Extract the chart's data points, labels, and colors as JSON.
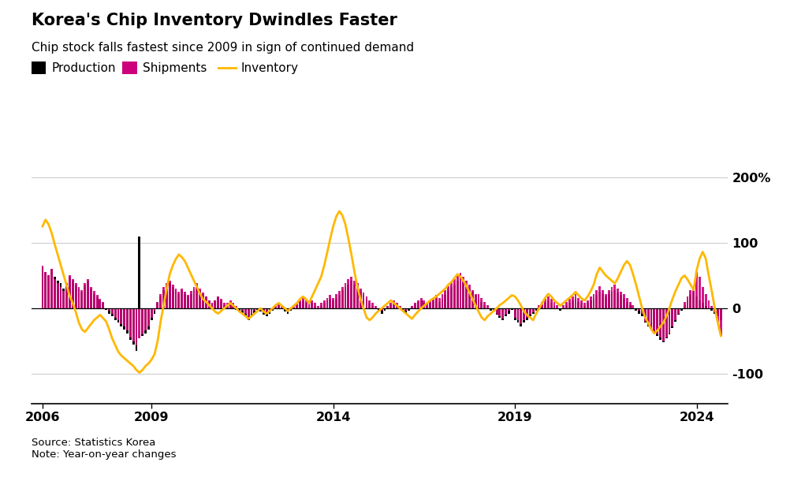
{
  "title": "Korea's Chip Inventory Dwindles Faster",
  "subtitle": "Chip stock falls fastest since 2009 in sign of continued demand",
  "legend_labels": [
    "Production",
    "Shipments",
    "Inventory"
  ],
  "production_color": "#000000",
  "shipments_color": "#CC007A",
  "inventory_color": "#FFB800",
  "yticks": [
    -100,
    0,
    100,
    200
  ],
  "ytick_labels": [
    "-100",
    "0",
    "100",
    "200%"
  ],
  "xlim_start": 2005.7,
  "xlim_end": 2024.85,
  "ylim": [
    -145,
    230
  ],
  "source_text": "Source: Statistics Korea\nNote: Year-on-year changes",
  "background_color": "#FFFFFF",
  "dates": [
    2006.0,
    2006.083,
    2006.167,
    2006.25,
    2006.333,
    2006.417,
    2006.5,
    2006.583,
    2006.667,
    2006.75,
    2006.833,
    2006.917,
    2007.0,
    2007.083,
    2007.167,
    2007.25,
    2007.333,
    2007.417,
    2007.5,
    2007.583,
    2007.667,
    2007.75,
    2007.833,
    2007.917,
    2008.0,
    2008.083,
    2008.167,
    2008.25,
    2008.333,
    2008.417,
    2008.5,
    2008.583,
    2008.667,
    2008.75,
    2008.833,
    2008.917,
    2009.0,
    2009.083,
    2009.167,
    2009.25,
    2009.333,
    2009.417,
    2009.5,
    2009.583,
    2009.667,
    2009.75,
    2009.833,
    2009.917,
    2010.0,
    2010.083,
    2010.167,
    2010.25,
    2010.333,
    2010.417,
    2010.5,
    2010.583,
    2010.667,
    2010.75,
    2010.833,
    2010.917,
    2011.0,
    2011.083,
    2011.167,
    2011.25,
    2011.333,
    2011.417,
    2011.5,
    2011.583,
    2011.667,
    2011.75,
    2011.833,
    2011.917,
    2012.0,
    2012.083,
    2012.167,
    2012.25,
    2012.333,
    2012.417,
    2012.5,
    2012.583,
    2012.667,
    2012.75,
    2012.833,
    2012.917,
    2013.0,
    2013.083,
    2013.167,
    2013.25,
    2013.333,
    2013.417,
    2013.5,
    2013.583,
    2013.667,
    2013.75,
    2013.833,
    2013.917,
    2014.0,
    2014.083,
    2014.167,
    2014.25,
    2014.333,
    2014.417,
    2014.5,
    2014.583,
    2014.667,
    2014.75,
    2014.833,
    2014.917,
    2015.0,
    2015.083,
    2015.167,
    2015.25,
    2015.333,
    2015.417,
    2015.5,
    2015.583,
    2015.667,
    2015.75,
    2015.833,
    2015.917,
    2016.0,
    2016.083,
    2016.167,
    2016.25,
    2016.333,
    2016.417,
    2016.5,
    2016.583,
    2016.667,
    2016.75,
    2016.833,
    2016.917,
    2017.0,
    2017.083,
    2017.167,
    2017.25,
    2017.333,
    2017.417,
    2017.5,
    2017.583,
    2017.667,
    2017.75,
    2017.833,
    2017.917,
    2018.0,
    2018.083,
    2018.167,
    2018.25,
    2018.333,
    2018.417,
    2018.5,
    2018.583,
    2018.667,
    2018.75,
    2018.833,
    2018.917,
    2019.0,
    2019.083,
    2019.167,
    2019.25,
    2019.333,
    2019.417,
    2019.5,
    2019.583,
    2019.667,
    2019.75,
    2019.833,
    2019.917,
    2020.0,
    2020.083,
    2020.167,
    2020.25,
    2020.333,
    2020.417,
    2020.5,
    2020.583,
    2020.667,
    2020.75,
    2020.833,
    2020.917,
    2021.0,
    2021.083,
    2021.167,
    2021.25,
    2021.333,
    2021.417,
    2021.5,
    2021.583,
    2021.667,
    2021.75,
    2021.833,
    2021.917,
    2022.0,
    2022.083,
    2022.167,
    2022.25,
    2022.333,
    2022.417,
    2022.5,
    2022.583,
    2022.667,
    2022.75,
    2022.833,
    2022.917,
    2023.0,
    2023.083,
    2023.167,
    2023.25,
    2023.333,
    2023.417,
    2023.5,
    2023.583,
    2023.667,
    2023.75,
    2023.833,
    2023.917,
    2024.0,
    2024.083,
    2024.167,
    2024.25,
    2024.333,
    2024.417,
    2024.5,
    2024.583,
    2024.667
  ],
  "production": [
    62,
    55,
    50,
    60,
    48,
    42,
    38,
    30,
    38,
    48,
    42,
    35,
    30,
    25,
    35,
    42,
    30,
    22,
    18,
    12,
    8,
    -2,
    -8,
    -12,
    -18,
    -22,
    -28,
    -32,
    -38,
    -48,
    -55,
    -65,
    110,
    -42,
    -38,
    -32,
    -18,
    -8,
    8,
    18,
    28,
    35,
    40,
    32,
    28,
    22,
    28,
    22,
    18,
    22,
    28,
    35,
    28,
    22,
    18,
    12,
    8,
    12,
    18,
    12,
    5,
    5,
    8,
    2,
    -2,
    -5,
    -8,
    -12,
    -18,
    -12,
    -8,
    -2,
    -5,
    -10,
    -12,
    -8,
    -3,
    2,
    6,
    0,
    -5,
    -8,
    -3,
    0,
    5,
    10,
    12,
    8,
    3,
    8,
    3,
    0,
    4,
    8,
    12,
    15,
    12,
    15,
    20,
    28,
    32,
    36,
    42,
    36,
    30,
    25,
    20,
    15,
    8,
    4,
    0,
    -4,
    -8,
    -3,
    2,
    6,
    8,
    4,
    0,
    -4,
    -8,
    -3,
    2,
    6,
    10,
    12,
    8,
    4,
    8,
    12,
    15,
    10,
    15,
    20,
    28,
    32,
    36,
    42,
    46,
    40,
    36,
    30,
    25,
    20,
    15,
    10,
    5,
    0,
    -4,
    -5,
    -10,
    -14,
    -18,
    -12,
    -8,
    -2,
    -18,
    -22,
    -28,
    -22,
    -18,
    -12,
    -8,
    -3,
    2,
    5,
    8,
    12,
    8,
    4,
    0,
    -4,
    0,
    5,
    8,
    12,
    15,
    10,
    8,
    4,
    8,
    12,
    15,
    20,
    25,
    22,
    18,
    22,
    25,
    28,
    24,
    20,
    15,
    10,
    5,
    0,
    -4,
    -8,
    -12,
    -22,
    -28,
    -32,
    -38,
    -42,
    -48,
    -52,
    -46,
    -40,
    -30,
    -20,
    -10,
    -3,
    5,
    12,
    20,
    25,
    18,
    12,
    8,
    4,
    0,
    -4,
    -8,
    -12,
    -18
  ],
  "shipments": [
    65,
    55,
    50,
    60,
    45,
    38,
    32,
    26,
    38,
    50,
    44,
    38,
    32,
    28,
    38,
    44,
    32,
    26,
    20,
    14,
    10,
    0,
    -4,
    -8,
    -14,
    -18,
    -24,
    -28,
    -34,
    -44,
    -50,
    -56,
    -46,
    -40,
    -34,
    -28,
    -14,
    -4,
    10,
    22,
    32,
    38,
    42,
    36,
    30,
    25,
    30,
    25,
    20,
    26,
    32,
    38,
    30,
    24,
    18,
    12,
    8,
    12,
    18,
    14,
    8,
    8,
    12,
    8,
    4,
    0,
    -4,
    -8,
    -14,
    -8,
    -4,
    0,
    0,
    -5,
    -8,
    -4,
    0,
    4,
    8,
    4,
    0,
    -4,
    0,
    4,
    8,
    12,
    16,
    12,
    8,
    12,
    8,
    4,
    8,
    12,
    16,
    20,
    16,
    22,
    26,
    32,
    38,
    44,
    48,
    42,
    38,
    30,
    24,
    18,
    12,
    8,
    4,
    0,
    -4,
    0,
    4,
    8,
    12,
    8,
    4,
    0,
    -4,
    0,
    4,
    8,
    12,
    16,
    12,
    8,
    12,
    16,
    20,
    16,
    22,
    28,
    34,
    40,
    44,
    50,
    54,
    48,
    42,
    36,
    28,
    22,
    22,
    16,
    10,
    5,
    0,
    -4,
    -8,
    -12,
    -16,
    -10,
    -4,
    0,
    -14,
    -18,
    -24,
    -18,
    -14,
    -10,
    -6,
    0,
    5,
    10,
    14,
    18,
    14,
    10,
    5,
    0,
    5,
    10,
    14,
    18,
    22,
    16,
    12,
    8,
    12,
    18,
    22,
    28,
    34,
    28,
    22,
    28,
    32,
    36,
    30,
    25,
    22,
    16,
    10,
    5,
    0,
    -4,
    -8,
    -20,
    -26,
    -30,
    -35,
    -40,
    -44,
    -50,
    -44,
    -38,
    -28,
    -18,
    -8,
    0,
    10,
    18,
    28,
    32,
    55,
    48,
    32,
    22,
    12,
    4,
    -6,
    -20,
    -42
  ],
  "inventory": [
    125,
    135,
    128,
    115,
    98,
    82,
    66,
    50,
    34,
    18,
    8,
    -6,
    -22,
    -32,
    -36,
    -30,
    -24,
    -18,
    -14,
    -10,
    -15,
    -20,
    -32,
    -46,
    -56,
    -66,
    -72,
    -76,
    -80,
    -84,
    -88,
    -94,
    -98,
    -94,
    -88,
    -84,
    -78,
    -70,
    -50,
    -20,
    5,
    30,
    52,
    65,
    75,
    82,
    78,
    72,
    62,
    52,
    42,
    32,
    22,
    14,
    10,
    5,
    0,
    -5,
    -8,
    -4,
    0,
    4,
    8,
    4,
    0,
    -5,
    -8,
    -12,
    -16,
    -12,
    -8,
    -4,
    0,
    -5,
    -8,
    -4,
    0,
    5,
    8,
    4,
    0,
    -4,
    0,
    4,
    8,
    14,
    18,
    14,
    8,
    18,
    28,
    38,
    48,
    65,
    85,
    106,
    125,
    140,
    148,
    142,
    128,
    106,
    82,
    56,
    32,
    14,
    0,
    -14,
    -18,
    -14,
    -8,
    -4,
    0,
    4,
    8,
    12,
    8,
    4,
    0,
    -4,
    -8,
    -12,
    -16,
    -10,
    -5,
    0,
    4,
    8,
    12,
    15,
    18,
    22,
    26,
    30,
    36,
    40,
    46,
    52,
    48,
    42,
    34,
    24,
    14,
    4,
    -5,
    -14,
    -18,
    -12,
    -8,
    -4,
    0,
    5,
    8,
    12,
    16,
    20,
    18,
    12,
    4,
    -5,
    -10,
    -14,
    -18,
    -8,
    0,
    8,
    16,
    22,
    18,
    12,
    8,
    4,
    8,
    12,
    16,
    20,
    25,
    20,
    15,
    12,
    18,
    26,
    36,
    52,
    62,
    56,
    50,
    46,
    42,
    38,
    46,
    56,
    66,
    72,
    66,
    52,
    36,
    18,
    0,
    -14,
    -22,
    -32,
    -38,
    -34,
    -28,
    -22,
    -12,
    0,
    14,
    26,
    36,
    46,
    50,
    44,
    36,
    28,
    58,
    76,
    86,
    76,
    50,
    26,
    0,
    -22,
    -42
  ],
  "xtick_positions": [
    2006,
    2009,
    2014,
    2019,
    2024
  ],
  "xtick_labels": [
    "2006",
    "2009",
    "2014",
    "2019",
    "2024"
  ]
}
